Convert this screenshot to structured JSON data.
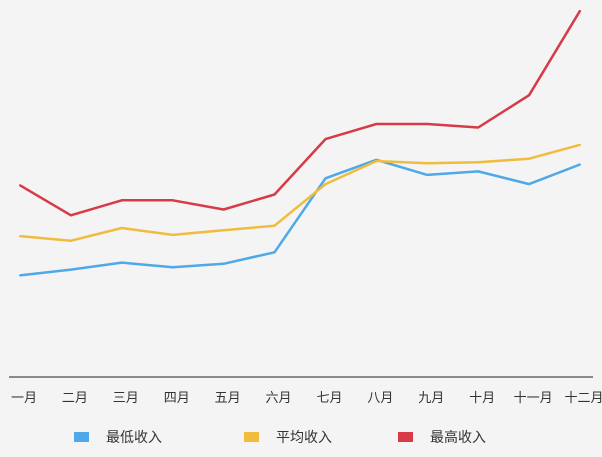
{
  "chart_data": {
    "type": "line",
    "categories": [
      "一月",
      "二月",
      "三月",
      "四月",
      "五月",
      "六月",
      "七月",
      "八月",
      "九月",
      "十月",
      "十一月",
      "十二月"
    ],
    "series": [
      {
        "name": "最低收入",
        "color": "#4fa8e8",
        "values": [
          88,
          93,
          99,
          95,
          98,
          108,
          172,
          188,
          175,
          178,
          167,
          184
        ]
      },
      {
        "name": "平均收入",
        "color": "#f0bc3e",
        "values": [
          122,
          118,
          129,
          123,
          127,
          131,
          167,
          187,
          185,
          186,
          189,
          201
        ]
      },
      {
        "name": "最高收入",
        "color": "#d63b47",
        "values": [
          166,
          140,
          153,
          153,
          145,
          158,
          206,
          219,
          219,
          216,
          244,
          317
        ]
      }
    ],
    "ylim": [
      0,
      316
    ],
    "grid": false,
    "legend_position": "bottom",
    "title": "",
    "xlabel": "",
    "ylabel": ""
  }
}
